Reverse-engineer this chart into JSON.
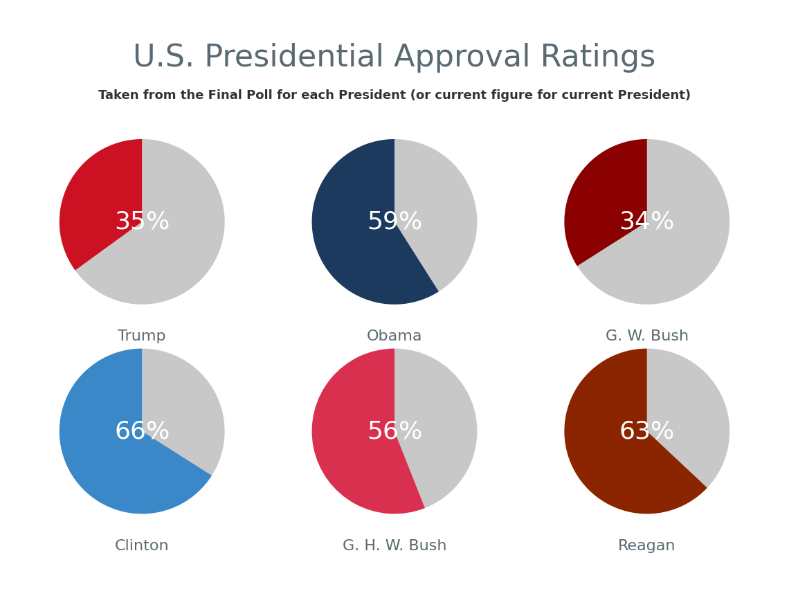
{
  "title": "U.S. Presidential Approval Ratings",
  "subtitle": "Taken from the Final Poll for each President (or current figure for current President)",
  "title_color": "#5a6a72",
  "subtitle_color": "#333333",
  "background_color": "#ffffff",
  "label_text_color": "#ffffff",
  "presidents": [
    {
      "name": "Trump",
      "approval": 35,
      "color": "#cc1122"
    },
    {
      "name": "Obama",
      "approval": 59,
      "color": "#1c3a5e"
    },
    {
      "name": "G. W. Bush",
      "approval": 34,
      "color": "#8b0000"
    },
    {
      "name": "Clinton",
      "approval": 66,
      "color": "#3a88c8"
    },
    {
      "name": "G. H. W. Bush",
      "approval": 56,
      "color": "#d93050"
    },
    {
      "name": "Reagan",
      "approval": 63,
      "color": "#8b2500"
    }
  ],
  "gray_color": "#c8c8c8",
  "pie_label_fontsize": 26,
  "name_fontsize": 16,
  "title_fontsize": 32,
  "subtitle_fontsize": 13,
  "startangle": 90
}
